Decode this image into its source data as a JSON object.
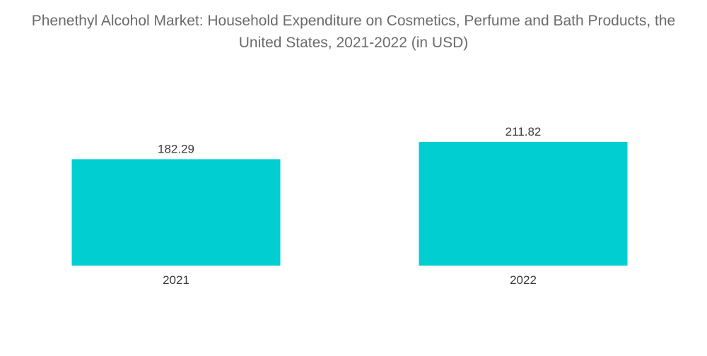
{
  "chart_data": {
    "type": "bar",
    "title": "Phenethyl Alcohol Market: Household Expenditure on Cosmetics, Perfume and Bath Products, the United States, 2021-2022 (in USD)",
    "categories": [
      "2021",
      "2022"
    ],
    "values": [
      182.29,
      211.82
    ],
    "value_labels": [
      "182.29",
      "211.82"
    ],
    "xlabel": "",
    "ylabel": "",
    "ylim": [
      0,
      211.82
    ],
    "grid": false,
    "legend": "none",
    "colors": {
      "bar": "#00CED1"
    }
  }
}
